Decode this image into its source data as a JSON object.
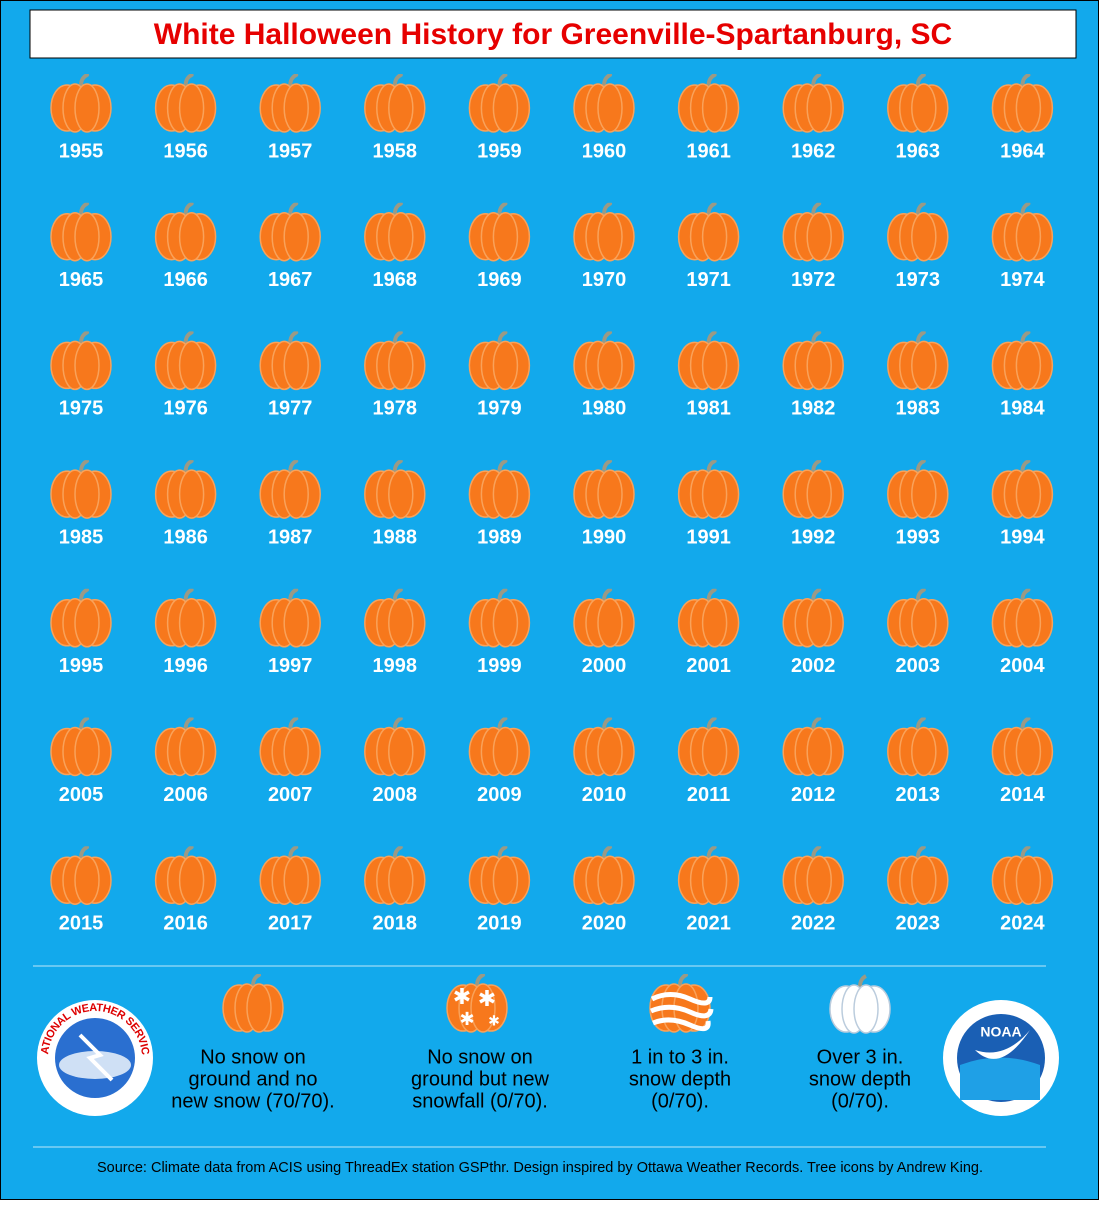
{
  "title": "White Halloween History for Greenville-Spartanburg, SC",
  "years": [
    1955,
    1956,
    1957,
    1958,
    1959,
    1960,
    1961,
    1962,
    1963,
    1964,
    1965,
    1966,
    1967,
    1968,
    1969,
    1970,
    1971,
    1972,
    1973,
    1974,
    1975,
    1976,
    1977,
    1978,
    1979,
    1980,
    1981,
    1982,
    1983,
    1984,
    1985,
    1986,
    1987,
    1988,
    1989,
    1990,
    1991,
    1992,
    1993,
    1994,
    1995,
    1996,
    1997,
    1998,
    1999,
    2000,
    2001,
    2002,
    2003,
    2004,
    2005,
    2006,
    2007,
    2008,
    2009,
    2010,
    2011,
    2012,
    2013,
    2014,
    2015,
    2016,
    2017,
    2018,
    2019,
    2020,
    2021,
    2022,
    2023,
    2024
  ],
  "legend": [
    {
      "lines": [
        "No snow on",
        "ground and no",
        "new snow (70/70)."
      ]
    },
    {
      "lines": [
        "No snow on",
        "ground but new",
        "snowfall (0/70)."
      ]
    },
    {
      "lines": [
        "1 in to 3 in.",
        "snow depth",
        "(0/70)."
      ]
    },
    {
      "lines": [
        "Over 3 in.",
        "snow depth",
        "(0/70)."
      ]
    }
  ],
  "nws_logo": "NATIONAL WEATHER SERVICE",
  "noaa_logo": "NOAA",
  "source": "Source: Climate data from ACIS using ThreadEx station GSPthr. Design inspired by Ottawa Weather Records. Tree icons by Andrew King."
}
